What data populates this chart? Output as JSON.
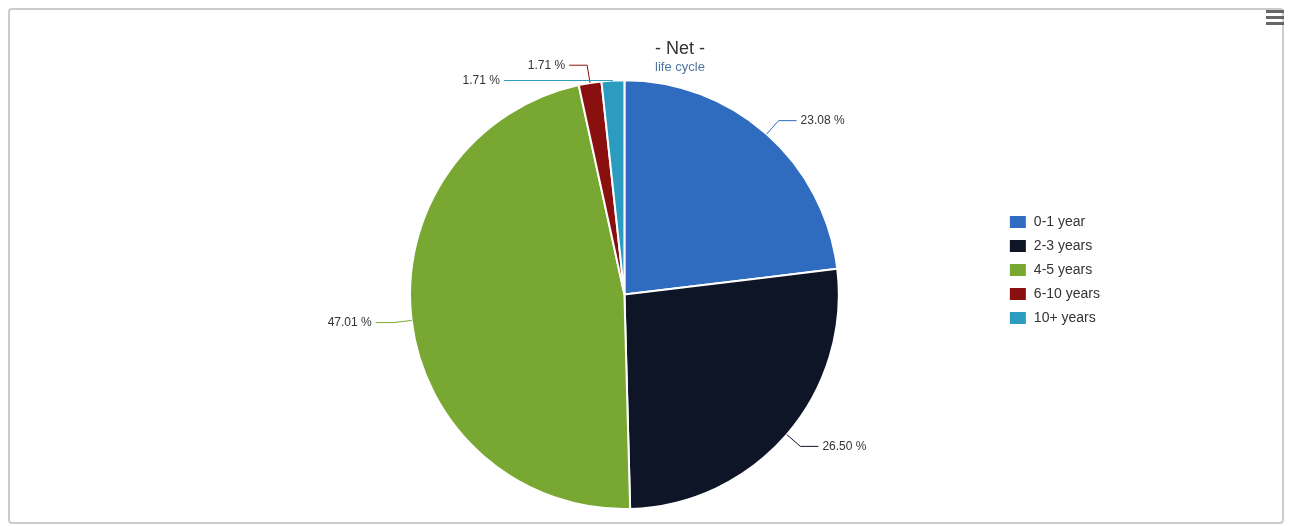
{
  "chart_data": {
    "type": "pie",
    "title": "- Net -",
    "subtitle": "life cycle",
    "categories": [
      "0-1 year",
      "2-3 years",
      "4-5 years",
      "6-10 years",
      "10+ years"
    ],
    "values": [
      23.08,
      26.5,
      47.01,
      1.71,
      1.71
    ],
    "value_labels": [
      "23.08 %",
      "26.50 %",
      "47.01 %",
      "1.71 %",
      "1.71 %"
    ],
    "colors": [
      "#2f6cc0",
      "#0e1526",
      "#78a832",
      "#8a1010",
      "#2b9cbf"
    ],
    "legend": "right"
  }
}
